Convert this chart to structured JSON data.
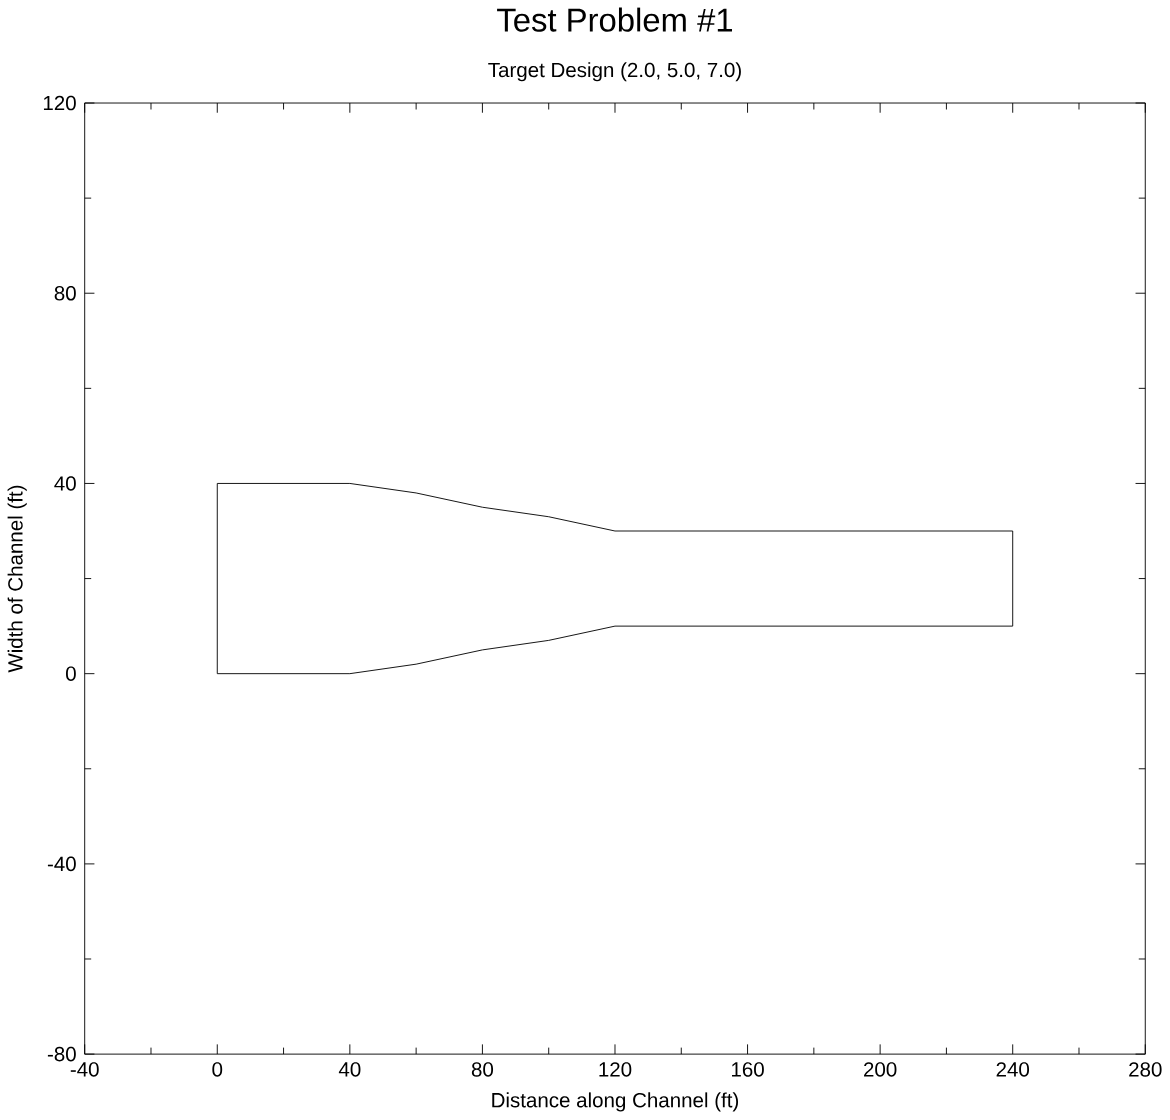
{
  "chart_data": {
    "type": "line",
    "title": "Test Problem #1",
    "subtitle": "Target Design (2.0, 5.0, 7.0)",
    "xlabel": "Distance along Channel (ft)",
    "ylabel": "Width of Channel (ft)",
    "x": [
      0,
      40,
      60,
      80,
      100,
      120,
      240
    ],
    "series": [
      {
        "color": "#000000",
        "x": [
          0,
          0,
          40,
          60,
          80,
          100,
          120,
          240,
          240
        ],
        "values": [
          0,
          40,
          40,
          38,
          35,
          33,
          30,
          30,
          10
        ]
      },
      {
        "color": "#000000",
        "values": [
          0,
          0,
          2,
          5,
          7,
          10,
          10
        ]
      }
    ],
    "xlim": [
      -40,
      280
    ],
    "xticks": [
      -40,
      0,
      40,
      80,
      120,
      160,
      200,
      240,
      280
    ],
    "ylim": [
      -80,
      120
    ],
    "yticks": [
      -80,
      -40,
      0,
      40,
      80,
      120
    ],
    "grid": false,
    "marker": "none",
    "line_style": "solid"
  }
}
